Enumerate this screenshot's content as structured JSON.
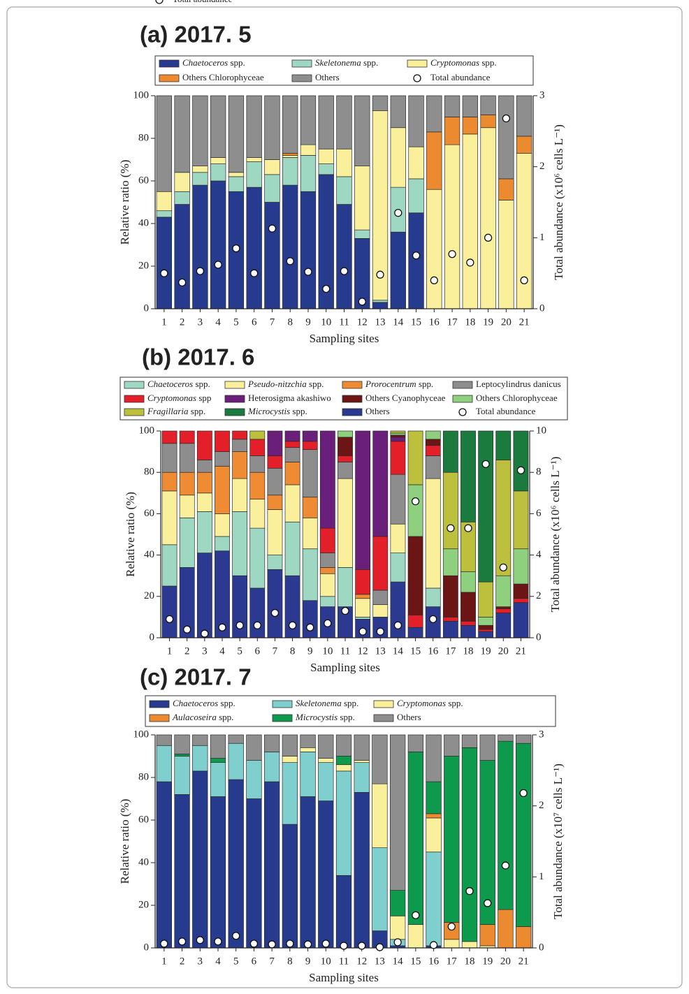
{
  "chart_data": [
    {
      "type": "bar",
      "stacked": true,
      "title": "(a) 2017. 5",
      "xlabel": "Sampling sites",
      "ylabel": "Relative ratio (%)",
      "y2label": "Total abundance (x10⁶ cells L⁻¹)",
      "categories": [
        "1",
        "2",
        "3",
        "4",
        "5",
        "6",
        "7",
        "8",
        "9",
        "10",
        "11",
        "12",
        "13",
        "14",
        "15",
        "16",
        "17",
        "18",
        "19",
        "20",
        "21"
      ],
      "ylim": [
        0,
        100
      ],
      "yticks": [
        0,
        20,
        40,
        60,
        80,
        100
      ],
      "y2lim": [
        0,
        3
      ],
      "y2ticks": [
        0,
        1,
        2,
        3
      ],
      "series": [
        {
          "name": "Chaetoceros spp.",
          "color": "#263a8e",
          "values": [
            43,
            49,
            58,
            60,
            55,
            57,
            50,
            58,
            55,
            63,
            49,
            33,
            3,
            36,
            45,
            0,
            0,
            0,
            0,
            0,
            0
          ]
        },
        {
          "name": "Skeletonema spp.",
          "color": "#9ed8c2",
          "values": [
            3,
            6,
            6,
            8,
            7,
            12,
            13,
            13,
            17,
            5,
            13,
            4,
            1,
            21,
            16,
            0,
            0,
            0,
            0,
            0,
            0
          ]
        },
        {
          "name": "Cryptomonas spp.",
          "color": "#faf09c",
          "values": [
            9,
            9,
            3,
            3,
            2,
            2,
            7,
            1,
            5,
            7,
            13,
            30,
            89,
            28,
            15,
            56,
            77,
            82,
            85,
            51,
            73
          ]
        },
        {
          "name": "Others Chlorophyceae",
          "color": "#ec8a30",
          "values": [
            0,
            0,
            0,
            0,
            0,
            0,
            0,
            1,
            0,
            0,
            0,
            0,
            0,
            0,
            0,
            27,
            13,
            8,
            6,
            10,
            8
          ]
        },
        {
          "name": "Others",
          "color": "#8e8e8e",
          "values": [
            45,
            36,
            33,
            29,
            36,
            29,
            30,
            27,
            23,
            25,
            25,
            33,
            7,
            15,
            24,
            17,
            10,
            10,
            9,
            39,
            19
          ]
        },
        {
          "name": "Total abundance",
          "axis": "y2",
          "color": "#ffffff",
          "values": [
            0.5,
            0.37,
            0.53,
            0.62,
            0.85,
            0.5,
            1.13,
            0.67,
            0.52,
            0.28,
            0.53,
            0.1,
            0.48,
            1.35,
            0.75,
            0.4,
            0.77,
            0.65,
            1.0,
            2.68,
            0.4
          ]
        }
      ]
    },
    {
      "type": "bar",
      "stacked": true,
      "title": "(b) 2017. 6",
      "xlabel": "Sampling sites",
      "ylabel": "Relative ratio (%)",
      "y2label": "Total abundance (x10⁶ cells L⁻¹)",
      "categories": [
        "1",
        "2",
        "3",
        "4",
        "5",
        "6",
        "7",
        "8",
        "9",
        "10",
        "11",
        "12",
        "13",
        "14",
        "15",
        "16",
        "17",
        "18",
        "19",
        "20",
        "21"
      ],
      "ylim": [
        0,
        100
      ],
      "yticks": [
        0,
        20,
        40,
        60,
        80,
        100
      ],
      "y2lim": [
        0,
        10
      ],
      "y2ticks": [
        0,
        2,
        4,
        6,
        8,
        10
      ],
      "series": [
        {
          "name": "Chaetoceros spp.",
          "color": "#9ed8c2",
          "values": [
            20,
            24,
            20,
            7,
            31,
            29,
            7,
            26,
            25,
            5,
            19,
            1,
            0,
            14,
            0,
            9,
            0,
            0,
            0,
            0,
            0
          ]
        },
        {
          "name": "Pseudo-nitzchia spp.",
          "color": "#faf09c",
          "values": [
            26,
            11,
            9,
            11,
            16,
            14,
            22,
            18,
            15,
            11,
            43,
            9,
            6,
            14,
            0,
            53,
            0,
            0,
            0,
            0,
            0
          ]
        },
        {
          "name": "Prorocentrum spp.",
          "color": "#ef8b33",
          "values": [
            9,
            11,
            10,
            23,
            13,
            13,
            7,
            11,
            10,
            3,
            0,
            2,
            0,
            0,
            0,
            0,
            0,
            0,
            0,
            0,
            0
          ]
        },
        {
          "name": "Leptocylindrus danicus",
          "color": "#8d8d8d",
          "values": [
            14,
            14,
            6,
            7,
            6,
            8,
            13,
            7,
            23,
            7,
            8,
            0,
            7,
            24,
            0,
            11,
            0,
            0,
            0,
            0,
            0
          ]
        },
        {
          "name": "Cryptomonas spp",
          "color": "#e3202a",
          "values": [
            6,
            6,
            14,
            10,
            4,
            8,
            6,
            3,
            4,
            12,
            3,
            12,
            26,
            16,
            6,
            5,
            2,
            2,
            1,
            2,
            2
          ]
        },
        {
          "name": "Heterosigma akashiwo",
          "color": "#6a1f7a",
          "values": [
            0,
            0,
            0,
            0,
            0,
            0,
            12,
            5,
            5,
            47,
            0,
            67,
            51,
            2,
            0,
            0,
            0,
            0,
            0,
            0,
            0
          ]
        },
        {
          "name": "Others Cyanophyceae",
          "color": "#6b1515",
          "values": [
            0,
            0,
            0,
            0,
            0,
            0,
            0,
            0,
            0,
            0,
            9,
            0,
            0,
            1,
            38,
            3,
            20,
            14,
            2,
            1,
            7
          ]
        },
        {
          "name": "Others Chlorophyceae",
          "color": "#8fd07f",
          "values": [
            0,
            0,
            0,
            0,
            0,
            0,
            0,
            0,
            0,
            0,
            3,
            0,
            0,
            1,
            25,
            4,
            13,
            10,
            4,
            15,
            17
          ]
        },
        {
          "name": "Fragillaria spp.",
          "color": "#bcc03c",
          "values": [
            0,
            0,
            0,
            0,
            0,
            4,
            0,
            0,
            0,
            0,
            0,
            0,
            0,
            1,
            26,
            0,
            37,
            24,
            17,
            56,
            28
          ]
        },
        {
          "name": "Microcystis spp.",
          "color": "#1b7a3e",
          "values": [
            0,
            0,
            0,
            0,
            0,
            0,
            0,
            0,
            0,
            0,
            0,
            0,
            0,
            0,
            0,
            0,
            20,
            44,
            73,
            14,
            29
          ]
        },
        {
          "name": "Others",
          "color": "#2b3990",
          "values": [
            25,
            34,
            41,
            42,
            30,
            24,
            33,
            30,
            18,
            15,
            15,
            9,
            10,
            27,
            5,
            15,
            8,
            6,
            3,
            12,
            17
          ]
        },
        {
          "name": "Total abundance",
          "axis": "y2",
          "color": "#ffffff",
          "values": [
            0.9,
            0.4,
            0.2,
            0.5,
            0.6,
            0.6,
            1.2,
            0.6,
            0.5,
            0.7,
            1.3,
            0.3,
            0.3,
            0.6,
            6.6,
            0.9,
            5.3,
            5.3,
            8.4,
            3.4,
            8.1
          ]
        }
      ]
    },
    {
      "type": "bar",
      "stacked": true,
      "title": "(c) 2017. 7",
      "xlabel": "Sampling sites",
      "ylabel": "Relative ratio (%)",
      "y2label": "Total abundance (x10⁷ cells L⁻¹)",
      "categories": [
        "1",
        "2",
        "3",
        "4",
        "5",
        "6",
        "7",
        "8",
        "9",
        "10",
        "11",
        "12",
        "13",
        "14",
        "15",
        "16",
        "17",
        "18",
        "19",
        "20",
        "21"
      ],
      "ylim": [
        0,
        100
      ],
      "yticks": [
        0,
        20,
        40,
        60,
        80,
        100
      ],
      "y2lim": [
        0,
        3
      ],
      "y2ticks": [
        0,
        1,
        2,
        3
      ],
      "series": [
        {
          "name": "Chaetoceros spp.",
          "color": "#263a8e",
          "values": [
            78,
            72,
            83,
            71,
            79,
            70,
            78,
            58,
            71,
            69,
            34,
            73,
            8,
            1,
            0,
            1,
            0,
            0,
            0,
            0,
            0
          ]
        },
        {
          "name": "Skeletonema spp.",
          "color": "#80cfcf",
          "values": [
            17,
            18,
            12,
            16,
            17,
            18,
            14,
            29,
            21,
            18,
            49,
            14,
            39,
            3,
            0,
            44,
            0,
            0,
            0,
            0,
            0
          ]
        },
        {
          "name": "Cryptomonas spp.",
          "color": "#faf09c",
          "values": [
            0,
            0,
            0,
            0,
            0,
            0,
            0,
            3,
            2,
            2,
            3,
            1,
            30,
            11,
            11,
            16,
            4,
            3,
            1,
            0,
            0
          ]
        },
        {
          "name": "Aulacoseira spp.",
          "color": "#ec8a30",
          "values": [
            0,
            0,
            0,
            0,
            0,
            0,
            0,
            0,
            0,
            0,
            0,
            0,
            0,
            0,
            0,
            2,
            8,
            0,
            10,
            18,
            10
          ]
        },
        {
          "name": "Microcystis spp.",
          "color": "#0e9a4c",
          "values": [
            0,
            1,
            0,
            2,
            0,
            0,
            0,
            0,
            0,
            0,
            4,
            0,
            0,
            12,
            81,
            15,
            78,
            91,
            77,
            79,
            86
          ]
        },
        {
          "name": "Others",
          "color": "#8e8e8e",
          "values": [
            5,
            9,
            5,
            11,
            4,
            12,
            8,
            10,
            6,
            11,
            10,
            12,
            23,
            73,
            8,
            22,
            10,
            6,
            12,
            3,
            4
          ]
        },
        {
          "name": "Total abundance",
          "axis": "y2",
          "color": "#ffffff",
          "values": [
            0.06,
            0.09,
            0.11,
            0.09,
            0.17,
            0.06,
            0.05,
            0.06,
            0.05,
            0.06,
            0.03,
            0.03,
            0.01,
            0.08,
            0.46,
            0.04,
            0.3,
            0.8,
            0.63,
            1.16,
            2.18
          ]
        }
      ]
    }
  ]
}
